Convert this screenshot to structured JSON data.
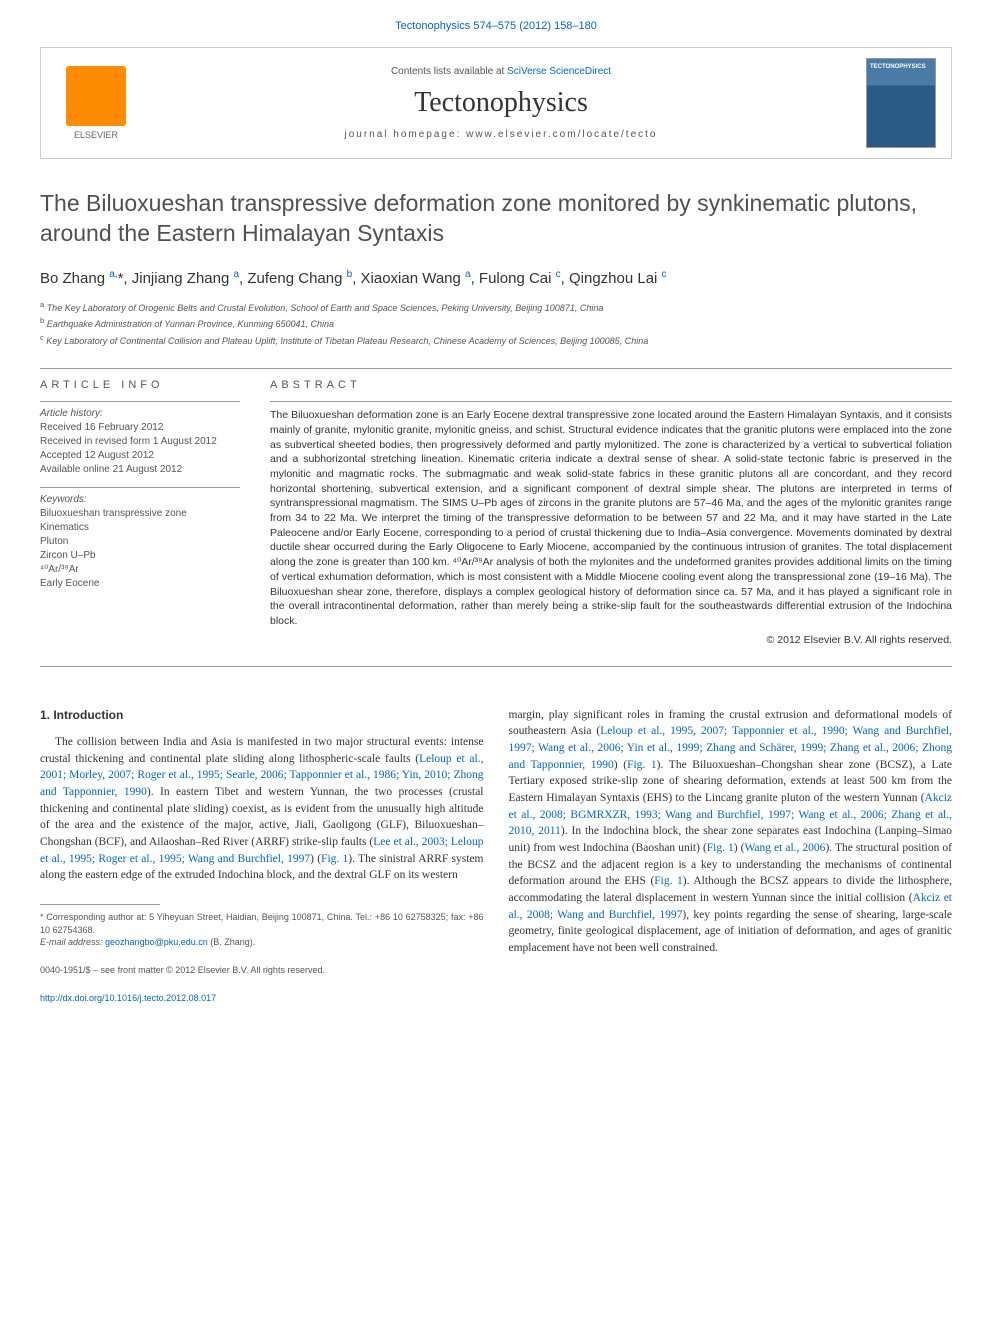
{
  "top_citation": "Tectonophysics 574–575 (2012) 158–180",
  "header": {
    "contents_text": "Contents lists available at ",
    "contents_link": "SciVerse ScienceDirect",
    "journal_name": "Tectonophysics",
    "homepage_label": "journal homepage: www.elsevier.com/locate/tecto",
    "publisher": "ELSEVIER",
    "cover_label": "TECTONOPHYSICS"
  },
  "article": {
    "title": "The Biluoxueshan transpressive deformation zone monitored by synkinematic plutons, around the Eastern Himalayan Syntaxis",
    "authors_html": "Bo Zhang <sup>a,</sup><span class='star'>*</span>, Jinjiang Zhang <sup>a</sup>, Zufeng Chang <sup>b</sup>, Xiaoxian Wang <sup>a</sup>, Fulong Cai <sup>c</sup>, Qingzhou Lai <sup>c</sup>",
    "affiliations": {
      "a": "The Key Laboratory of Orogenic Belts and Crustal Evolution, School of Earth and Space Sciences, Peking University, Beijing 100871, China",
      "b": "Earthquake Administration of Yunnan Province, Kunming 650041, China",
      "c": "Key Laboratory of Continental Collision and Plateau Uplift, Institute of Tibetan Plateau Research, Chinese Academy of Sciences, Beijing 100085, China"
    }
  },
  "info": {
    "heading": "ARTICLE INFO",
    "history_label": "Article history:",
    "history": "Received 16 February 2012\nReceived in revised form 1 August 2012\nAccepted 12 August 2012\nAvailable online 21 August 2012",
    "keywords_label": "Keywords:",
    "keywords": "Biluoxueshan transpressive zone\nKinematics\nPluton\nZircon U–Pb\n⁴⁰Ar/³⁹Ar\nEarly Eocene"
  },
  "abstract": {
    "heading": "ABSTRACT",
    "text": "The Biluoxueshan deformation zone is an Early Eocene dextral transpressive zone located around the Eastern Himalayan Syntaxis, and it consists mainly of granite, mylonitic granite, mylonitic gneiss, and schist. Structural evidence indicates that the granitic plutons were emplaced into the zone as subvertical sheeted bodies, then progressively deformed and partly mylonitized. The zone is characterized by a vertical to subvertical foliation and a subhorizontal stretching lineation. Kinematic criteria indicate a dextral sense of shear. A solid-state tectonic fabric is preserved in the mylonitic and magmatic rocks. The submagmatic and weak solid-state fabrics in these granitic plutons all are concordant, and they record horizontal shortening, subvertical extension, and a significant component of dextral simple shear. The plutons are interpreted in terms of syntranspressional magmatism. The SIMS U–Pb ages of zircons in the granite plutons are 57–46 Ma, and the ages of the mylonitic granites range from 34 to 22 Ma. We interpret the timing of the transpressive deformation to be between 57 and 22 Ma, and it may have started in the Late Paleocene and/or Early Eocene, corresponding to a period of crustal thickening due to India–Asia convergence. Movements dominated by dextral ductile shear occurred during the Early Oligocene to Early Miocene, accompanied by the continuous intrusion of granites. The total displacement along the zone is greater than 100 km. ⁴⁰Ar/³⁹Ar analysis of both the mylonites and the undeformed granites provides additional limits on the timing of vertical exhumation deformation, which is most consistent with a Middle Miocene cooling event along the transpressional zone (19–16 Ma). The Biluoxueshan shear zone, therefore, displays a complex geological history of deformation since ca. 57 Ma, and it has played a significant role in the overall intracontinental deformation, rather than merely being a strike-slip fault for the southeastwards differential extrusion of the Indochina block.",
    "copyright": "© 2012 Elsevier B.V. All rights reserved."
  },
  "body": {
    "section_heading": "1. Introduction",
    "col1_p1_pre": "The collision between India and Asia is manifested in two major structural events: intense crustal thickening and continental plate sliding along lithospheric-scale faults (",
    "col1_ref1": "Leloup et al., 2001; Morley, 2007; Roger et al., 1995; Searle, 2006; Tapponnier et al., 1986; Yin, 2010; Zhong and Tapponnier, 1990",
    "col1_p1_mid1": "). In eastern Tibet and western Yunnan, the two processes (crustal thickening and continental plate sliding) coexist, as is evident from the unusually high altitude of the area and the existence of the major, active, Jiali, Gaoligong (GLF), Biluoxueshan–Chongshan (BCF), and Ailaoshan–Red River (ARRF) strike-slip faults (",
    "col1_ref2": "Lee et al., 2003; Leloup et al., 1995; Roger et al., 1995; Wang and Burchfiel, 1997",
    "col1_p1_mid2": ") (",
    "col1_fig1": "Fig. 1",
    "col1_p1_end": "). The sinistral ARRF system along the eastern edge of the extruded Indochina block, and the dextral GLF on its western",
    "col2_p1_pre": "margin, play significant roles in framing the crustal extrusion and deformational models of southeastern Asia (",
    "col2_ref1": "Leloup et al., 1995, 2007; Tapponnier et al., 1990; Wang and Burchfiel, 1997; Wang et al., 2006; Yin et al., 1999; Zhang and Schärer, 1999; Zhang et al., 2006; Zhong and Tapponnier, 1990",
    "col2_p1_mid1": ") (",
    "col2_fig1a": "Fig. 1",
    "col2_p1_mid2": "). The Biluoxueshan–Chongshan shear zone (BCSZ), a Late Tertiary exposed strike-slip zone of shearing deformation, extends at least 500 km from the Eastern Himalayan Syntaxis (EHS) to the Lincang granite pluton of the western Yunnan (",
    "col2_ref2": "Akciz et al., 2008; BGMRXZR, 1993; Wang and Burchfiel, 1997; Wang et al., 2006; Zhang et al., 2010, 2011",
    "col2_p1_mid3": "). In the Indochina block, the shear zone separates east Indochina (Lanping–Simao unit) from west Indochina (Baoshan unit) (",
    "col2_fig1b": "Fig. 1",
    "col2_p1_mid4": ") (",
    "col2_ref3": "Wang et al., 2006",
    "col2_p1_mid5": "). The structural position of the BCSZ and the adjacent region is a key to understanding the mechanisms of continental deformation around the EHS (",
    "col2_fig1c": "Fig. 1",
    "col2_p1_mid6": "). Although the BCSZ appears to divide the lithosphere, accommodating the lateral displacement in western Yunnan since the initial collision (",
    "col2_ref4": "Akciz et al., 2008; Wang and Burchfiel, 1997",
    "col2_p1_end": "), key points regarding the sense of shearing, large-scale geometry, finite geological displacement, age of initiation of deformation, and ages of granitic emplacement have not been well constrained."
  },
  "footnote": {
    "corresponding": "* Corresponding author at: 5 Yiheyuan Street, Haidian, Beijing 100871, China. Tel.: +86 10 62758325; fax: +86 10 62754368.",
    "email_label": "E-mail address: ",
    "email": "geozhangbo@pku.edu.cn",
    "email_suffix": " (B. Zhang)."
  },
  "bottom": {
    "issn": "0040-1951/$ – see front matter © 2012 Elsevier B.V. All rights reserved.",
    "doi": "http://dx.doi.org/10.1016/j.tecto.2012.08.017"
  },
  "colors": {
    "link": "#0066cc",
    "text": "#333333",
    "muted": "#555555",
    "rule": "#999999",
    "elsevier_orange": "#ff8c00",
    "cover_blue_top": "#4a7ba6",
    "cover_blue_bottom": "#2a5a86"
  }
}
